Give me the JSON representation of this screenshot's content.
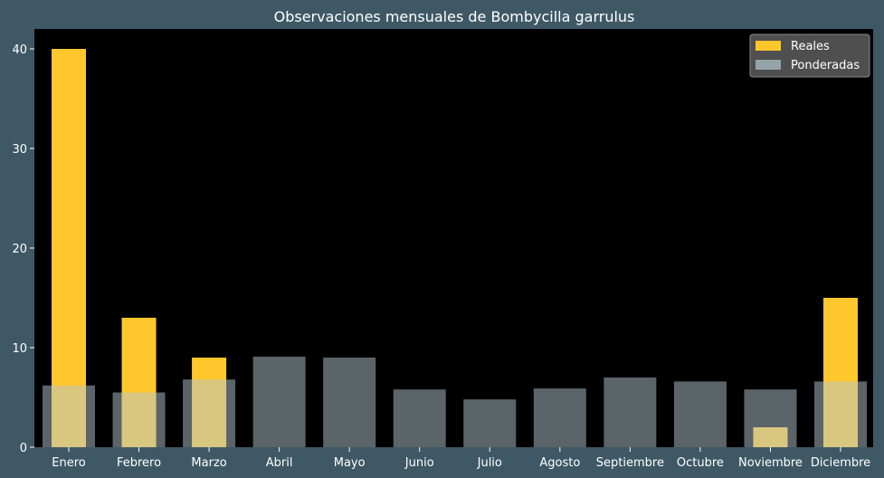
{
  "chart_data": {
    "type": "bar",
    "title": "Observaciones mensuales de Bombycilla garrulus",
    "xlabel": "",
    "ylabel": "",
    "categories": [
      "Enero",
      "Febrero",
      "Marzo",
      "Abril",
      "Mayo",
      "Junio",
      "Julio",
      "Agosto",
      "Septiembre",
      "Octubre",
      "Noviembre",
      "Diciembre"
    ],
    "series": [
      {
        "name": "Reales",
        "color": "#ffc72c",
        "values": [
          40,
          13,
          9,
          0,
          0,
          0,
          0,
          0,
          0,
          0,
          2,
          15
        ]
      },
      {
        "name": "Ponderadas",
        "color": "#b4c8d2",
        "opacity": 0.5,
        "values": [
          6.2,
          5.5,
          6.8,
          9.1,
          9.0,
          5.8,
          4.8,
          5.9,
          7.0,
          6.6,
          5.8,
          6.6
        ]
      }
    ],
    "ylim": [
      0,
      42
    ],
    "yticks": [
      0,
      10,
      20,
      30,
      40
    ],
    "legend_position": "top-right",
    "grid": false,
    "colors": {
      "figure_background": "#3f5866",
      "plot_background": "#000000",
      "text": "#ffffff",
      "legend_background": "#4f4f4f"
    }
  }
}
